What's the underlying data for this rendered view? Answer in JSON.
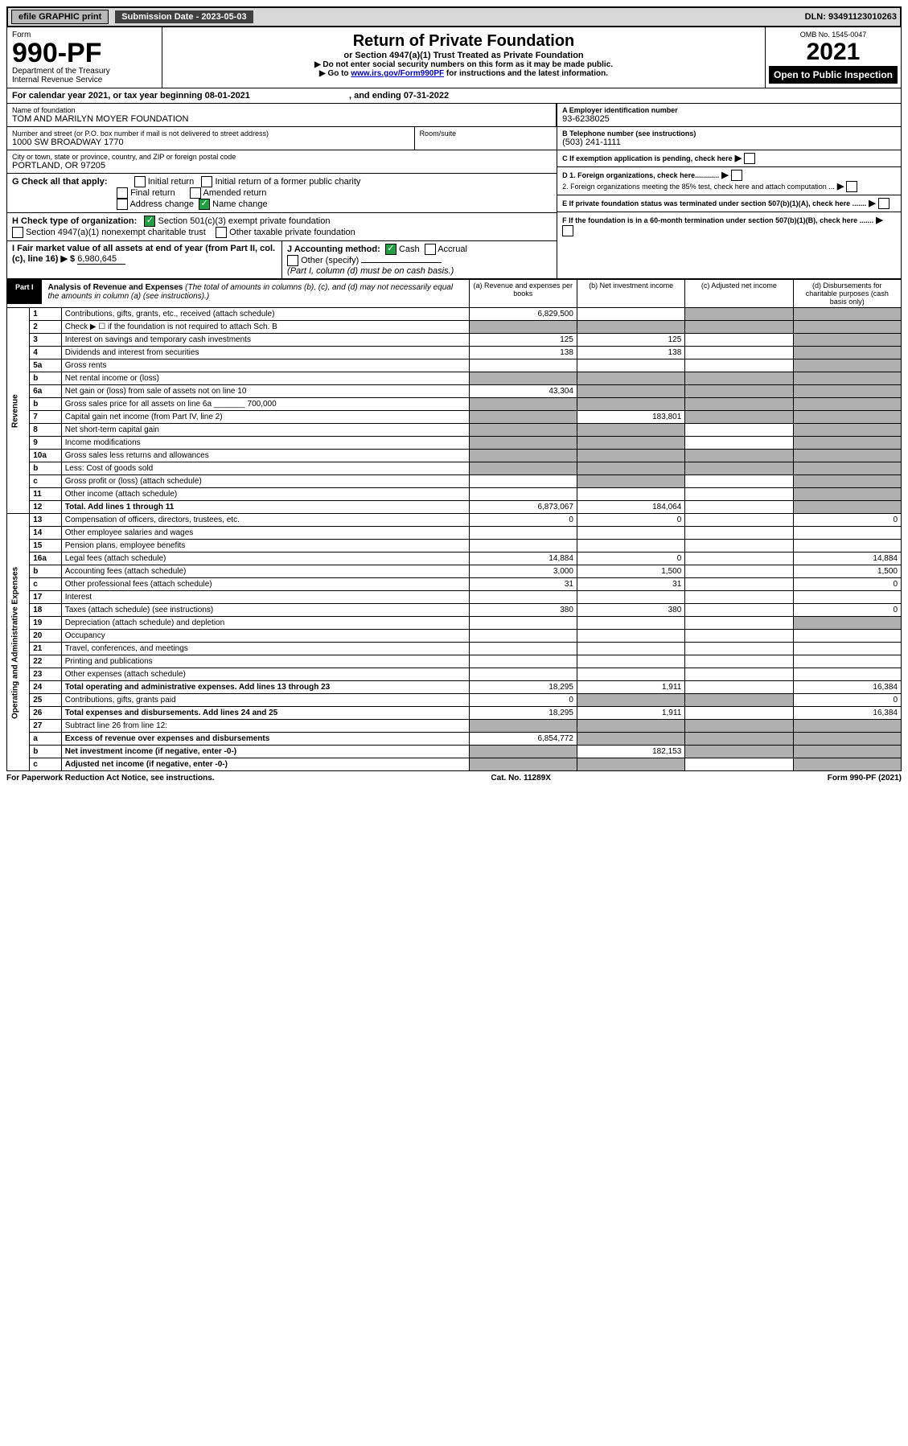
{
  "topbar": {
    "efile": "efile GRAPHIC print",
    "submission": "Submission Date - 2023-05-03",
    "dln": "DLN: 93491123010263"
  },
  "header": {
    "form_label": "Form",
    "form_number": "990-PF",
    "dept": "Department of the Treasury",
    "irs": "Internal Revenue Service",
    "title": "Return of Private Foundation",
    "subtitle": "or Section 4947(a)(1) Trust Treated as Private Foundation",
    "instr1": "▶ Do not enter social security numbers on this form as it may be made public.",
    "instr2_pre": "▶ Go to ",
    "instr2_link": "www.irs.gov/Form990PF",
    "instr2_post": " for instructions and the latest information.",
    "omb": "OMB No. 1545-0047",
    "year": "2021",
    "open": "Open to Public Inspection"
  },
  "period": {
    "text": "For calendar year 2021, or tax year beginning 08-01-2021",
    "ending": ", and ending 07-31-2022"
  },
  "id": {
    "name_label": "Name of foundation",
    "name": "TOM AND MARILYN MOYER FOUNDATION",
    "addr_label": "Number and street (or P.O. box number if mail is not delivered to street address)",
    "addr": "1000 SW BROADWAY 1770",
    "room_label": "Room/suite",
    "city_label": "City or town, state or province, country, and ZIP or foreign postal code",
    "city": "PORTLAND, OR  97205",
    "a_label": "A Employer identification number",
    "a_value": "93-6238025",
    "b_label": "B Telephone number (see instructions)",
    "b_value": "(503) 241-1111",
    "c_label": "C If exemption application is pending, check here",
    "d1_label": "D 1. Foreign organizations, check here............",
    "d2_label": "2. Foreign organizations meeting the 85% test, check here and attach computation ...",
    "e_label": "E  If private foundation status was terminated under section 507(b)(1)(A), check here .......",
    "f_label": "F  If the foundation is in a 60-month termination under section 507(b)(1)(B), check here .......",
    "g_label": "G Check all that apply:",
    "g_opts": [
      "Initial return",
      "Initial return of a former public charity",
      "Final return",
      "Amended return",
      "Address change",
      "Name change"
    ],
    "h_label": "H Check type of organization:",
    "h_opt1": "Section 501(c)(3) exempt private foundation",
    "h_opt2": "Section 4947(a)(1) nonexempt charitable trust",
    "h_opt3": "Other taxable private foundation",
    "i_label": "I Fair market value of all assets at end of year (from Part II, col. (c), line 16) ▶ $",
    "i_value": "6,980,645",
    "j_label": "J Accounting method:",
    "j_cash": "Cash",
    "j_accrual": "Accrual",
    "j_other": "Other (specify)",
    "j_note": "(Part I, column (d) must be on cash basis.)"
  },
  "part1": {
    "label": "Part I",
    "title": "Analysis of Revenue and Expenses",
    "note": "(The total of amounts in columns (b), (c), and (d) may not necessarily equal the amounts in column (a) (see instructions).)",
    "col_a": "(a) Revenue and expenses per books",
    "col_b": "(b) Net investment income",
    "col_c": "(c) Adjusted net income",
    "col_d": "(d) Disbursements for charitable purposes (cash basis only)",
    "revenue_label": "Revenue",
    "expenses_label": "Operating and Administrative Expenses"
  },
  "lines": [
    {
      "n": "1",
      "d": "Contributions, gifts, grants, etc., received (attach schedule)",
      "a": "6,829,500",
      "b": "",
      "c": "shaded",
      "dd": "shaded"
    },
    {
      "n": "2",
      "d": "Check ▶ ☐ if the foundation is not required to attach Sch. B",
      "a": "shaded",
      "b": "shaded",
      "c": "shaded",
      "dd": "shaded"
    },
    {
      "n": "3",
      "d": "Interest on savings and temporary cash investments",
      "a": "125",
      "b": "125",
      "c": "",
      "dd": "shaded"
    },
    {
      "n": "4",
      "d": "Dividends and interest from securities",
      "a": "138",
      "b": "138",
      "c": "",
      "dd": "shaded"
    },
    {
      "n": "5a",
      "d": "Gross rents",
      "a": "",
      "b": "",
      "c": "",
      "dd": "shaded"
    },
    {
      "n": "b",
      "d": "Net rental income or (loss)",
      "a": "shaded",
      "b": "shaded",
      "c": "shaded",
      "dd": "shaded"
    },
    {
      "n": "6a",
      "d": "Net gain or (loss) from sale of assets not on line 10",
      "a": "43,304",
      "b": "shaded",
      "c": "shaded",
      "dd": "shaded"
    },
    {
      "n": "b",
      "d": "Gross sales price for all assets on line 6a _______ 700,000",
      "a": "shaded",
      "b": "shaded",
      "c": "shaded",
      "dd": "shaded"
    },
    {
      "n": "7",
      "d": "Capital gain net income (from Part IV, line 2)",
      "a": "shaded",
      "b": "183,801",
      "c": "shaded",
      "dd": "shaded"
    },
    {
      "n": "8",
      "d": "Net short-term capital gain",
      "a": "shaded",
      "b": "shaded",
      "c": "",
      "dd": "shaded"
    },
    {
      "n": "9",
      "d": "Income modifications",
      "a": "shaded",
      "b": "shaded",
      "c": "",
      "dd": "shaded"
    },
    {
      "n": "10a",
      "d": "Gross sales less returns and allowances",
      "a": "shaded",
      "b": "shaded",
      "c": "shaded",
      "dd": "shaded"
    },
    {
      "n": "b",
      "d": "Less: Cost of goods sold",
      "a": "shaded",
      "b": "shaded",
      "c": "shaded",
      "dd": "shaded"
    },
    {
      "n": "c",
      "d": "Gross profit or (loss) (attach schedule)",
      "a": "",
      "b": "shaded",
      "c": "",
      "dd": "shaded"
    },
    {
      "n": "11",
      "d": "Other income (attach schedule)",
      "a": "",
      "b": "",
      "c": "",
      "dd": "shaded"
    },
    {
      "n": "12",
      "d": "Total. Add lines 1 through 11",
      "a": "6,873,067",
      "b": "184,064",
      "c": "",
      "dd": "shaded",
      "bold": true
    },
    {
      "n": "13",
      "d": "Compensation of officers, directors, trustees, etc.",
      "a": "0",
      "b": "0",
      "c": "",
      "dd": "0"
    },
    {
      "n": "14",
      "d": "Other employee salaries and wages",
      "a": "",
      "b": "",
      "c": "",
      "dd": ""
    },
    {
      "n": "15",
      "d": "Pension plans, employee benefits",
      "a": "",
      "b": "",
      "c": "",
      "dd": ""
    },
    {
      "n": "16a",
      "d": "Legal fees (attach schedule)",
      "a": "14,884",
      "b": "0",
      "c": "",
      "dd": "14,884"
    },
    {
      "n": "b",
      "d": "Accounting fees (attach schedule)",
      "a": "3,000",
      "b": "1,500",
      "c": "",
      "dd": "1,500"
    },
    {
      "n": "c",
      "d": "Other professional fees (attach schedule)",
      "a": "31",
      "b": "31",
      "c": "",
      "dd": "0"
    },
    {
      "n": "17",
      "d": "Interest",
      "a": "",
      "b": "",
      "c": "",
      "dd": ""
    },
    {
      "n": "18",
      "d": "Taxes (attach schedule) (see instructions)",
      "a": "380",
      "b": "380",
      "c": "",
      "dd": "0"
    },
    {
      "n": "19",
      "d": "Depreciation (attach schedule) and depletion",
      "a": "",
      "b": "",
      "c": "",
      "dd": "shaded"
    },
    {
      "n": "20",
      "d": "Occupancy",
      "a": "",
      "b": "",
      "c": "",
      "dd": ""
    },
    {
      "n": "21",
      "d": "Travel, conferences, and meetings",
      "a": "",
      "b": "",
      "c": "",
      "dd": ""
    },
    {
      "n": "22",
      "d": "Printing and publications",
      "a": "",
      "b": "",
      "c": "",
      "dd": ""
    },
    {
      "n": "23",
      "d": "Other expenses (attach schedule)",
      "a": "",
      "b": "",
      "c": "",
      "dd": ""
    },
    {
      "n": "24",
      "d": "Total operating and administrative expenses. Add lines 13 through 23",
      "a": "18,295",
      "b": "1,911",
      "c": "",
      "dd": "16,384",
      "bold": true
    },
    {
      "n": "25",
      "d": "Contributions, gifts, grants paid",
      "a": "0",
      "b": "shaded",
      "c": "shaded",
      "dd": "0"
    },
    {
      "n": "26",
      "d": "Total expenses and disbursements. Add lines 24 and 25",
      "a": "18,295",
      "b": "1,911",
      "c": "",
      "dd": "16,384",
      "bold": true
    },
    {
      "n": "27",
      "d": "Subtract line 26 from line 12:",
      "a": "shaded",
      "b": "shaded",
      "c": "shaded",
      "dd": "shaded"
    },
    {
      "n": "a",
      "d": "Excess of revenue over expenses and disbursements",
      "a": "6,854,772",
      "b": "shaded",
      "c": "shaded",
      "dd": "shaded",
      "bold": true
    },
    {
      "n": "b",
      "d": "Net investment income (if negative, enter -0-)",
      "a": "shaded",
      "b": "182,153",
      "c": "shaded",
      "dd": "shaded",
      "bold": true
    },
    {
      "n": "c",
      "d": "Adjusted net income (if negative, enter -0-)",
      "a": "shaded",
      "b": "shaded",
      "c": "",
      "dd": "shaded",
      "bold": true
    }
  ],
  "footer": {
    "left": "For Paperwork Reduction Act Notice, see instructions.",
    "center": "Cat. No. 11289X",
    "right": "Form 990-PF (2021)"
  }
}
